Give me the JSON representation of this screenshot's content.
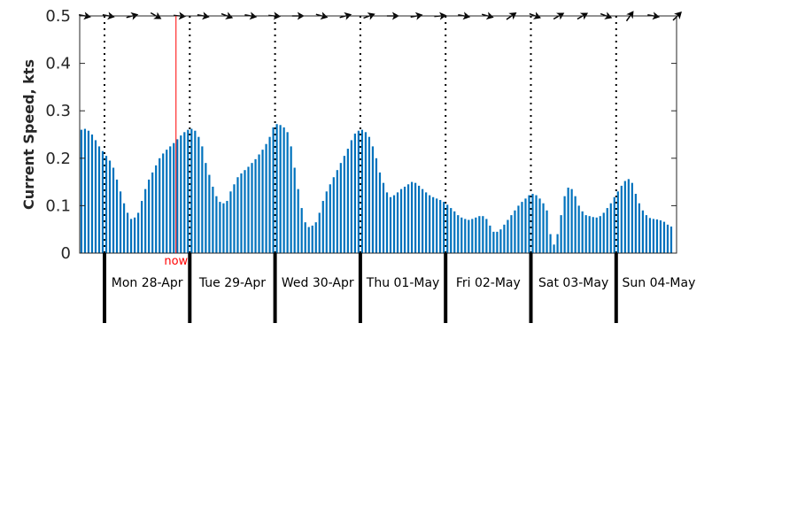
{
  "chart_data": {
    "type": "bar",
    "ylabel": "Current Speed, kts",
    "ylim": [
      0,
      0.5
    ],
    "yticks": [
      0,
      0.1,
      0.2,
      0.3,
      0.4,
      0.5
    ],
    "ytick_labels": [
      "0",
      "0.1",
      "0.2",
      "0.3",
      "0.4",
      "0.5"
    ],
    "hours_per_bar": 1,
    "series_start_hour": -9,
    "days": [
      "Mon 28-Apr",
      "Tue 29-Apr",
      "Wed 30-Apr",
      "Thu 01-May",
      "Fri 02-May",
      "Sat 03-May",
      "Sun 04-May"
    ],
    "now_label": "now",
    "now_hour": 20,
    "values": [
      0.25,
      0.255,
      0.26,
      0.262,
      0.258,
      0.25,
      0.238,
      0.225,
      0.215,
      0.205,
      0.195,
      0.18,
      0.155,
      0.13,
      0.105,
      0.085,
      0.072,
      0.075,
      0.085,
      0.11,
      0.135,
      0.155,
      0.17,
      0.185,
      0.2,
      0.21,
      0.218,
      0.225,
      0.232,
      0.24,
      0.248,
      0.255,
      0.26,
      0.262,
      0.258,
      0.245,
      0.225,
      0.19,
      0.165,
      0.14,
      0.12,
      0.108,
      0.105,
      0.11,
      0.13,
      0.145,
      0.16,
      0.168,
      0.175,
      0.182,
      0.19,
      0.198,
      0.208,
      0.218,
      0.23,
      0.245,
      0.265,
      0.272,
      0.27,
      0.265,
      0.255,
      0.225,
      0.18,
      0.135,
      0.095,
      0.065,
      0.055,
      0.058,
      0.065,
      0.085,
      0.11,
      0.13,
      0.145,
      0.16,
      0.175,
      0.19,
      0.205,
      0.22,
      0.238,
      0.252,
      0.258,
      0.26,
      0.255,
      0.245,
      0.225,
      0.2,
      0.17,
      0.148,
      0.128,
      0.118,
      0.122,
      0.128,
      0.135,
      0.14,
      0.145,
      0.15,
      0.148,
      0.142,
      0.135,
      0.128,
      0.122,
      0.118,
      0.115,
      0.112,
      0.108,
      0.102,
      0.095,
      0.088,
      0.08,
      0.075,
      0.072,
      0.07,
      0.072,
      0.075,
      0.078,
      0.078,
      0.072,
      0.058,
      0.045,
      0.045,
      0.05,
      0.06,
      0.07,
      0.08,
      0.09,
      0.1,
      0.108,
      0.115,
      0.122,
      0.125,
      0.122,
      0.115,
      0.105,
      0.09,
      0.04,
      0.018,
      0.04,
      0.08,
      0.12,
      0.138,
      0.135,
      0.12,
      0.1,
      0.088,
      0.08,
      0.078,
      0.076,
      0.075,
      0.078,
      0.085,
      0.095,
      0.105,
      0.118,
      0.13,
      0.142,
      0.152,
      0.156,
      0.148,
      0.125,
      0.105,
      0.09,
      0.08,
      0.074,
      0.072,
      0.071,
      0.069,
      0.066,
      0.06,
      0.056
    ],
    "direction_arrows_deg": [
      100,
      100,
      75,
      120,
      95,
      100,
      110,
      100,
      95,
      90,
      105,
      75,
      70,
      90,
      80,
      85,
      100,
      105,
      55,
      110,
      60,
      60,
      110,
      35,
      100,
      45
    ],
    "bar_color": "#0072BD",
    "now_color": "#FF0000"
  }
}
